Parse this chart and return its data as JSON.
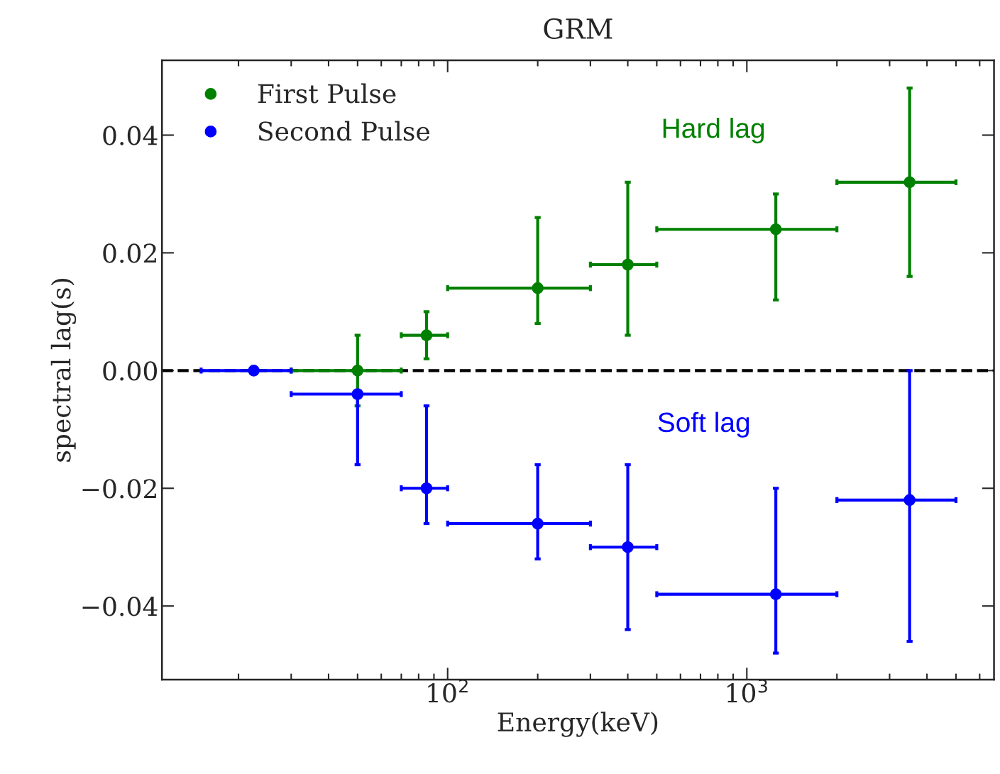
{
  "chart_data": {
    "type": "scatter",
    "title": "GRM",
    "xlabel": "Energy(keV)",
    "ylabel": "spectral lag(s)",
    "log": "x",
    "xlim": [
      11.1,
      6700
    ],
    "xticks": [
      {
        "value": 100,
        "label": "10$^{2}$"
      },
      {
        "value": 1000,
        "label": "10$^{3}$"
      }
    ],
    "ylim": [
      -0.0525,
      0.0527
    ],
    "yticks": [
      {
        "value": -0.04,
        "label": "−0.04"
      },
      {
        "value": -0.02,
        "label": "−0.02"
      },
      {
        "value": 0.0,
        "label": "0.00"
      },
      {
        "value": 0.02,
        "label": "0.02"
      },
      {
        "value": 0.04,
        "label": "0.04"
      }
    ],
    "grid": false,
    "legend": "top left",
    "marker": "circle",
    "annotations": [
      "Hard lag",
      "Soft lag"
    ],
    "ref_lines": [
      {
        "axis": "y",
        "value": 0,
        "color": "#000000",
        "line_style": "dashed"
      }
    ],
    "series": [
      {
        "name": "First Pulse",
        "color": "#008000",
        "x": [
          50,
          85,
          200,
          400,
          1250,
          3500
        ],
        "values": [
          0.0,
          0.006,
          0.014,
          0.018,
          0.024,
          0.032
        ],
        "errors": [
          [
            -0.006,
            0.006
          ],
          [
            0.002,
            0.01
          ],
          [
            0.008,
            0.026
          ],
          [
            0.006,
            0.032
          ],
          [
            0.012,
            0.03
          ],
          [
            0.016,
            0.048
          ]
        ],
        "xerrors": [
          [
            30,
            70
          ],
          [
            70,
            100
          ],
          [
            100,
            300
          ],
          [
            300,
            500
          ],
          [
            500,
            2000
          ],
          [
            2000,
            5000
          ]
        ]
      },
      {
        "name": "Second Pulse",
        "color": "#0000ff",
        "x": [
          22.5,
          50,
          85,
          200,
          400,
          1250,
          3500
        ],
        "values": [
          0.0,
          -0.004,
          -0.02,
          -0.026,
          -0.03,
          -0.038,
          -0.022
        ],
        "errors": [
          null,
          [
            -0.016,
            -0.004
          ],
          [
            -0.026,
            -0.006
          ],
          [
            -0.032,
            -0.016
          ],
          [
            -0.044,
            -0.016
          ],
          [
            -0.048,
            -0.02
          ],
          [
            -0.046,
            0.0
          ]
        ],
        "xerrors": [
          [
            15,
            30
          ],
          [
            30,
            70
          ],
          [
            70,
            100
          ],
          [
            100,
            300
          ],
          [
            300,
            500
          ],
          [
            500,
            2000
          ],
          [
            2000,
            5000
          ]
        ]
      }
    ]
  }
}
